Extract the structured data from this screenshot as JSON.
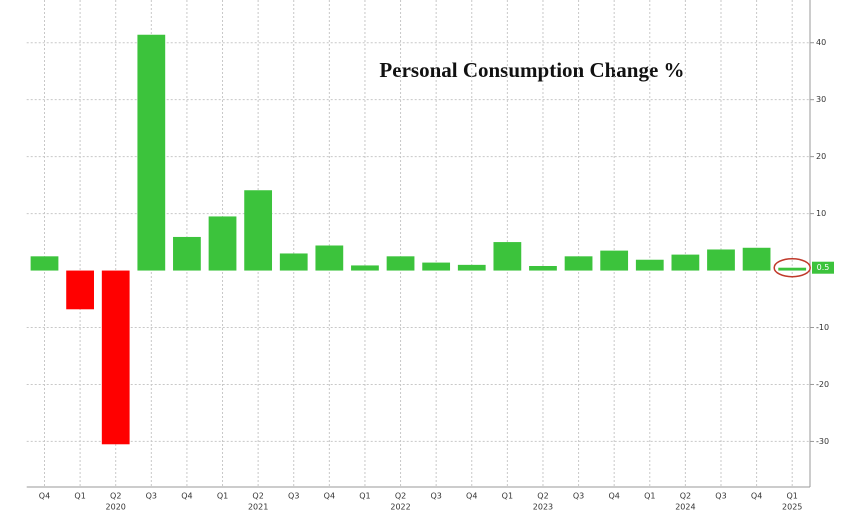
{
  "chart_data": {
    "type": "bar",
    "title": "Personal Consumption Change %",
    "categories": [
      "Q4",
      "Q1",
      "Q2",
      "Q3",
      "Q4",
      "Q1",
      "Q2",
      "Q3",
      "Q4",
      "Q1",
      "Q2",
      "Q3",
      "Q4",
      "Q1",
      "Q2",
      "Q3",
      "Q4",
      "Q1",
      "Q2",
      "Q3",
      "Q4",
      "Q1"
    ],
    "years": [
      null,
      null,
      "2020",
      null,
      null,
      null,
      "2021",
      null,
      null,
      null,
      "2022",
      null,
      null,
      null,
      "2023",
      null,
      null,
      null,
      "2024",
      null,
      null,
      "2025"
    ],
    "values": [
      2.5,
      -6.8,
      -30.5,
      41.4,
      5.9,
      9.5,
      14.1,
      3.0,
      4.4,
      0.9,
      2.5,
      1.4,
      1.0,
      5.0,
      0.8,
      2.5,
      3.5,
      1.9,
      2.8,
      3.7,
      4.0,
      0.5
    ],
    "positive_color": "#3cc33c",
    "negative_color": "#ff0000",
    "ylim": [
      -38,
      47.5
    ],
    "yticks": [
      -30,
      -20,
      -10,
      10,
      20,
      30,
      40
    ],
    "grid": true,
    "y_axis_side": "right"
  }
}
